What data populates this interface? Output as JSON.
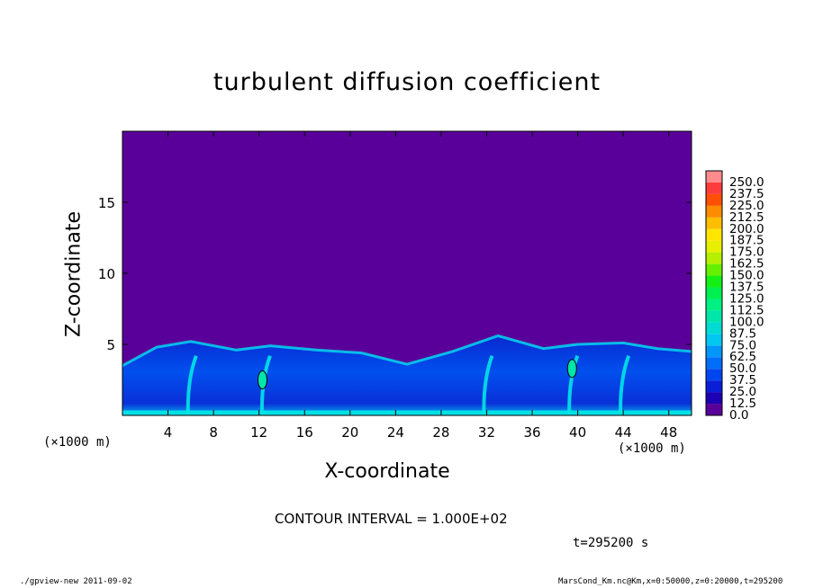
{
  "chart_data": {
    "type": "heatmap",
    "title": "turbulent diffusion coefficient",
    "xlabel": "X-coordinate",
    "ylabel": "Z-coordinate",
    "xunit": "(×1000 m)",
    "yunit": "(×1000 m)",
    "xlim": [
      0,
      50
    ],
    "ylim": [
      0,
      20
    ],
    "x_ticks": [
      4,
      8,
      12,
      16,
      20,
      24,
      28,
      32,
      36,
      40,
      44,
      48
    ],
    "y_ticks": [
      5,
      10,
      15
    ],
    "background_value": 0.0,
    "boundary_layer_top": [
      {
        "x": 0,
        "z": 3.5
      },
      {
        "x": 3,
        "z": 4.8
      },
      {
        "x": 6,
        "z": 5.2
      },
      {
        "x": 10,
        "z": 4.6
      },
      {
        "x": 13,
        "z": 4.9
      },
      {
        "x": 17,
        "z": 4.6
      },
      {
        "x": 21,
        "z": 4.4
      },
      {
        "x": 25,
        "z": 3.6
      },
      {
        "x": 29,
        "z": 4.5
      },
      {
        "x": 33,
        "z": 5.6
      },
      {
        "x": 37,
        "z": 4.7
      },
      {
        "x": 40,
        "z": 5.0
      },
      {
        "x": 44,
        "z": 5.1
      },
      {
        "x": 47,
        "z": 4.7
      },
      {
        "x": 50,
        "z": 4.5
      }
    ],
    "plumes_x": [
      6,
      12.5,
      32,
      39.5,
      44
    ],
    "contour_100_regions": [
      {
        "x": 12.3,
        "z": 2.5
      },
      {
        "x": 39.5,
        "z": 3.3
      }
    ],
    "colorbar": {
      "labels": [
        "0.0",
        "12.5",
        "25.0",
        "37.5",
        "50.0",
        "62.5",
        "75.0",
        "87.5",
        "100.0",
        "112.5",
        "125.0",
        "137.5",
        "150.0",
        "162.5",
        "175.0",
        "187.5",
        "200.0",
        "212.5",
        "225.0",
        "237.5",
        "250.0"
      ],
      "colors": [
        "#5a009a",
        "#1c00b4",
        "#0a1ed8",
        "#0046f0",
        "#006ef8",
        "#0096fa",
        "#00c8f0",
        "#00dcd2",
        "#00e6aa",
        "#00f082",
        "#00f050",
        "#14f014",
        "#64f000",
        "#b4f000",
        "#e6f000",
        "#ffe600",
        "#ffbe00",
        "#ff8c00",
        "#ff5000",
        "#ff3c3c",
        "#ff8c8c"
      ]
    }
  },
  "contour_interval": "CONTOUR INTERVAL = 1.000E+02",
  "time_label": "t=295200 s",
  "footer": {
    "left": "./gpview-new  2011-09-02",
    "right": "MarsCond_Km.nc@Km,x=0:50000,z=0:20000,t=295200"
  }
}
